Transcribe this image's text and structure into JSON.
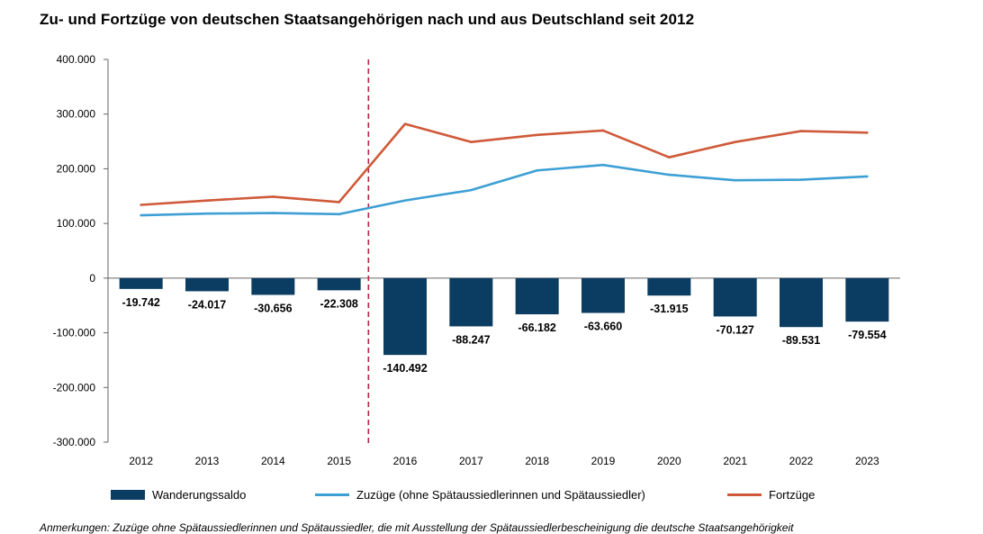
{
  "title": "Zu- und Fortzüge von deutschen Staatsangehörigen nach und aus Deutschland seit 2012",
  "colors": {
    "bar": "#0b3d62",
    "zuzuege": "#3d9fd4",
    "fortzuege": "#cf5a3a",
    "divider": "#b6244a",
    "axis": "#666666"
  },
  "chart_data": {
    "type": "bar+line",
    "categories": [
      "2012",
      "2013",
      "2014",
      "2015",
      "2016",
      "2017",
      "2018",
      "2019",
      "2020",
      "2021",
      "2022",
      "2023"
    ],
    "ylim": [
      -300000,
      400000
    ],
    "yticks": [
      400000,
      300000,
      200000,
      100000,
      0,
      -100000,
      -200000,
      -300000
    ],
    "ytick_labels": [
      "400.000",
      "300.000",
      "200.000",
      "100.000",
      "0",
      "-100.000",
      "-200.000",
      "-300.000"
    ],
    "divider_between": [
      "2015",
      "2016"
    ],
    "series": [
      {
        "name": "Wanderungssaldo",
        "kind": "bar",
        "values": [
          -19742,
          -24017,
          -30656,
          -22308,
          -140492,
          -88247,
          -66182,
          -63660,
          -31915,
          -70127,
          -89531,
          -79554
        ],
        "labels": [
          "-19.742",
          "-24.017",
          "-30.656",
          "-22.308",
          "-140.492",
          "-88.247",
          "-66.182",
          "-63.660",
          "-31.915",
          "-70.127",
          "-89.531",
          "-79.554"
        ]
      },
      {
        "name": "Zuzüge (ohne Spätaussiedlerinnen und Spätaussiedler)",
        "kind": "line",
        "values": [
          115000,
          118000,
          119000,
          117000,
          142000,
          161000,
          197000,
          207000,
          189000,
          179000,
          180000,
          186000
        ]
      },
      {
        "name": "Fortzüge",
        "kind": "line",
        "values": [
          134000,
          142000,
          149000,
          139000,
          282000,
          249000,
          262000,
          270000,
          221000,
          249000,
          269000,
          266000
        ]
      }
    ]
  },
  "legend": {
    "bar_label": "Wanderungssaldo",
    "zuzuege_label": "Zuzüge (ohne Spätaussiedlerinnen und Spätaussiedler)",
    "fortzuege_label": "Fortzüge"
  },
  "footnote": "Anmerkungen: Zuzüge ohne Spätaussiedlerinnen und Spätaussiedler, die mit Ausstellung der Spätaussiedlerbescheinigung die deutsche Staatsangehörigkeit"
}
